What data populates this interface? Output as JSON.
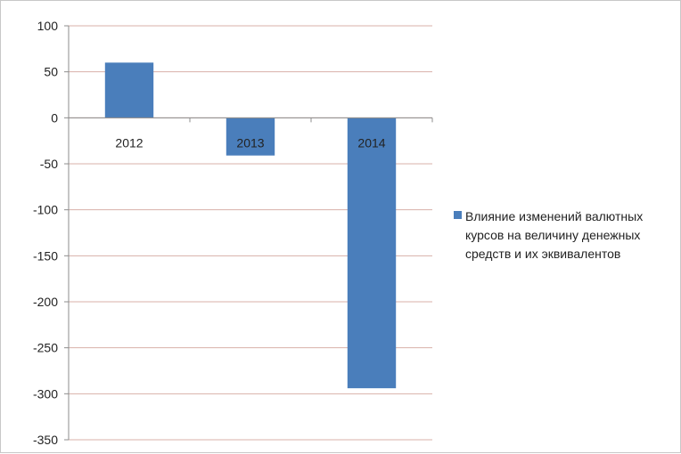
{
  "chart_data": {
    "type": "bar",
    "categories": [
      "2012",
      "2013",
      "2014"
    ],
    "series": [
      {
        "name": "Влияние изменений валютных курсов на величину денежных средств и их эквивалентов",
        "values": [
          60,
          -41,
          -294
        ],
        "color": "#4a7ebb"
      }
    ],
    "ylim": [
      -350,
      100
    ],
    "yticks": [
      100,
      50,
      0,
      -50,
      -100,
      -150,
      -200,
      -250,
      -300,
      -350
    ],
    "gridlines": true,
    "legend": "right",
    "colors": {
      "bar": "#4a7ebb",
      "grid": "#d8b0a8",
      "axis": "#8c8c8c"
    }
  }
}
